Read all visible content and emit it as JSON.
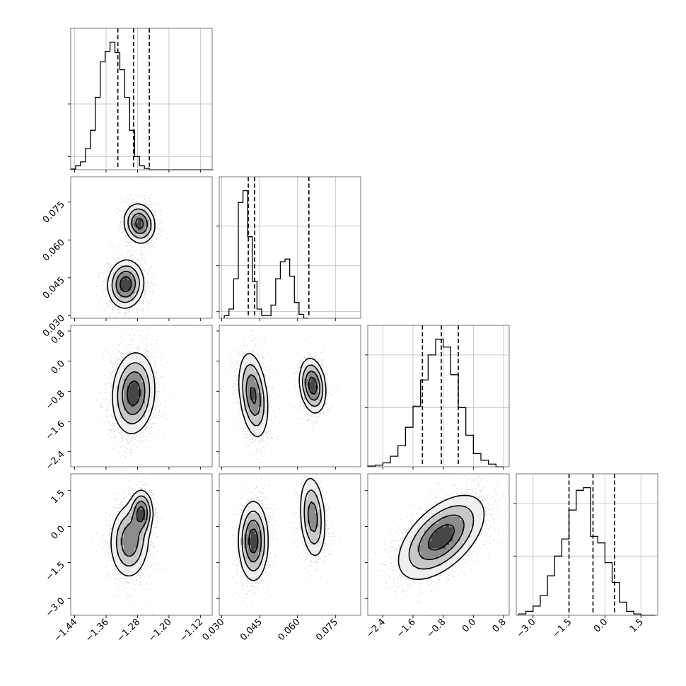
{
  "chart_data": {
    "type": "corner",
    "parameters": [
      {
        "range": [
          -1.45,
          -1.09
        ],
        "ticks": [
          -1.44,
          -1.36,
          -1.28,
          -1.2,
          -1.12
        ],
        "tick_labels": [
          "−1.44",
          "−1.36",
          "−1.28",
          "−1.20",
          "−1.12"
        ],
        "quantiles": [
          -1.33,
          -1.29,
          -1.25
        ],
        "hist": {
          "start": -1.45,
          "step": 0.0125,
          "values": [
            0.005,
            0.03,
            0.06,
            0.16,
            0.3,
            0.55,
            0.82,
            0.9,
            0.97,
            0.89,
            0.76,
            0.55,
            0.3,
            0.1,
            0.03,
            0.01,
            0,
            0,
            0,
            0,
            0,
            0,
            0,
            0,
            0,
            0,
            0,
            0,
            0
          ]
        },
        "hist_gridlines": [
          0.1,
          0.5
        ]
      },
      {
        "range": [
          0.029,
          0.085
        ],
        "ticks": [
          0.03,
          0.045,
          0.06,
          0.075
        ],
        "tick_labels": [
          "0.030",
          "0.045",
          "0.060",
          "0.075"
        ],
        "quantiles": [
          0.0405,
          0.043,
          0.0645
        ],
        "hist": {
          "start": 0.031,
          "step": 0.00185,
          "values": [
            0.02,
            0.07,
            0.3,
            0.88,
            0.97,
            0.62,
            0.28,
            0.07,
            0.02,
            0.02,
            0.1,
            0.3,
            0.43,
            0.45,
            0.32,
            0.12,
            0.03,
            0
          ]
        },
        "hist_gridlines": [
          0.05,
          0.4,
          0.7
        ]
      },
      {
        "range": [
          -2.8,
          0.95
        ],
        "ticks": [
          -2.4,
          -1.6,
          -0.8,
          0.0,
          0.8
        ],
        "tick_labels": [
          "−2.4",
          "−1.6",
          "−0.8",
          "0.0",
          "0.8"
        ],
        "quantiles": [
          -1.35,
          -0.85,
          -0.4
        ],
        "hist": {
          "start": -2.8,
          "step": 0.2,
          "values": [
            0.005,
            0.012,
            0.03,
            0.08,
            0.16,
            0.3,
            0.46,
            0.66,
            0.85,
            0.97,
            0.91,
            0.7,
            0.45,
            0.24,
            0.1,
            0.05,
            0.02,
            0
          ]
        },
        "hist_gridlines": [
          0.45,
          0.85
        ]
      },
      {
        "range": [
          -3.7,
          2.2
        ],
        "ticks": [
          -3.0,
          -1.5,
          0.0,
          1.5
        ],
        "tick_labels": [
          "−3.0",
          "−1.5",
          "0.0",
          "1.5"
        ],
        "quantiles": [
          -1.5,
          -0.5,
          0.4
        ],
        "hist": {
          "start": -3.6,
          "step": 0.3,
          "values": [
            0.01,
            0.03,
            0.07,
            0.15,
            0.3,
            0.45,
            0.58,
            0.8,
            0.95,
            0.97,
            0.6,
            0.55,
            0.4,
            0.25,
            0.1,
            0.03,
            0.01,
            0,
            0
          ]
        },
        "hist_gridlines": [
          0.45,
          0.85
        ]
      }
    ],
    "panels": [
      {
        "x": 0,
        "y": 1,
        "blobs": [
          {
            "cx": -1.31,
            "cy": 0.0425,
            "sx": 0.022,
            "sy": 0.0046,
            "rho": 0.05,
            "w": 0.6
          },
          {
            "cx": -1.275,
            "cy": 0.0665,
            "sx": 0.019,
            "sy": 0.0038,
            "rho": -0.1,
            "w": 0.4
          }
        ]
      },
      {
        "x": 0,
        "y": 2,
        "blobs": [
          {
            "cx": -1.29,
            "cy": -0.85,
            "sx": 0.026,
            "sy": 0.52,
            "rho": 0.1,
            "w": 1.0
          }
        ]
      },
      {
        "x": 1,
        "y": 2,
        "blobs": [
          {
            "cx": 0.0425,
            "cy": -0.9,
            "sx": 0.0028,
            "sy": 0.55,
            "rho": -0.3,
            "w": 0.6
          },
          {
            "cx": 0.066,
            "cy": -0.65,
            "sx": 0.0025,
            "sy": 0.35,
            "rho": -0.2,
            "w": 0.4
          }
        ]
      },
      {
        "x": 0,
        "y": 3,
        "blobs": [
          {
            "cx": -1.3,
            "cy": -0.6,
            "sx": 0.024,
            "sy": 0.75,
            "rho": 0.05,
            "w": 0.72
          },
          {
            "cx": -1.27,
            "cy": 0.6,
            "sx": 0.014,
            "sy": 0.45,
            "rho": 0.0,
            "w": 0.28
          }
        ]
      },
      {
        "x": 1,
        "y": 3,
        "blobs": [
          {
            "cx": 0.0425,
            "cy": -0.6,
            "sx": 0.0028,
            "sy": 0.8,
            "rho": 0.0,
            "w": 0.6
          },
          {
            "cx": 0.066,
            "cy": 0.4,
            "sx": 0.0025,
            "sy": 0.85,
            "rho": -0.2,
            "w": 0.4
          }
        ]
      },
      {
        "x": 2,
        "y": 3,
        "blobs": [
          {
            "cx": -0.85,
            "cy": -0.45,
            "sx": 0.55,
            "sy": 0.85,
            "rho": 0.55,
            "w": 1.0
          }
        ]
      }
    ]
  }
}
